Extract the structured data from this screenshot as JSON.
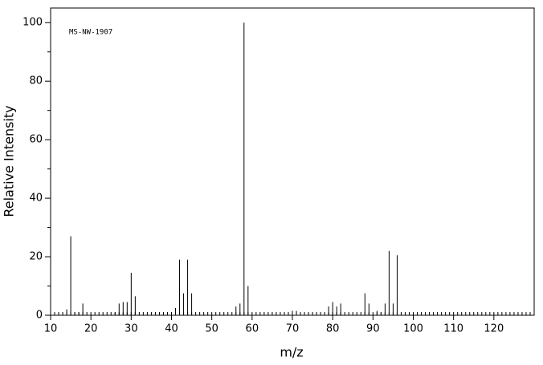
{
  "chart_data": {
    "type": "bar",
    "annotation": "MS-NW-1907",
    "xlabel": "m/z",
    "ylabel": "Relative Intensity",
    "x": [
      14,
      15,
      16,
      17,
      18,
      26,
      27,
      28,
      29,
      30,
      31,
      40,
      41,
      42,
      43,
      44,
      45,
      56,
      57,
      58,
      59,
      70,
      71,
      79,
      80,
      81,
      82,
      88,
      89,
      91,
      92,
      93,
      94,
      95,
      96
    ],
    "values": [
      2,
      27,
      1,
      1,
      4,
      1,
      4,
      4.5,
      4.5,
      14.5,
      6.5,
      1,
      2.5,
      19,
      7.5,
      19,
      7.5,
      3,
      4,
      100,
      10,
      1.5,
      1.5,
      3,
      4.5,
      3,
      4,
      7.5,
      4,
      1.5,
      1,
      4,
      22,
      4,
      20.5
    ],
    "color": "#000000",
    "xlim": [
      10,
      130
    ],
    "xticks": [
      10,
      20,
      30,
      40,
      50,
      60,
      70,
      80,
      90,
      100,
      110,
      120
    ],
    "ylim": [
      0,
      105
    ],
    "yticks": [
      0,
      20,
      40,
      60,
      80,
      100
    ]
  }
}
